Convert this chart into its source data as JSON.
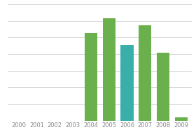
{
  "categories": [
    "2000",
    "2001",
    "2002",
    "2003",
    "2004",
    "2005",
    "2006",
    "2007",
    "2008",
    "2009"
  ],
  "values": [
    0,
    0,
    0,
    0,
    75,
    88,
    65,
    82,
    58,
    3
  ],
  "bar_colors": [
    "#6ab04c",
    "#6ab04c",
    "#6ab04c",
    "#6ab04c",
    "#6ab04c",
    "#6ab04c",
    "#3aafa9",
    "#6ab04c",
    "#6ab04c",
    "#6ab04c"
  ],
  "ylim": [
    0,
    100
  ],
  "background_color": "#ffffff",
  "grid_color": "#d8d8d8",
  "tick_fontsize": 6.0,
  "tick_color": "#888888",
  "bar_width": 0.7
}
